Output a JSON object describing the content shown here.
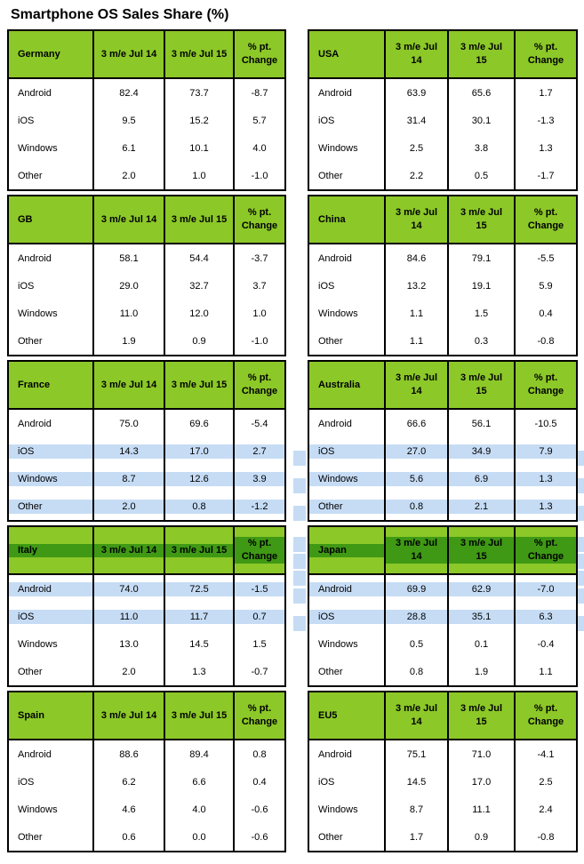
{
  "title": "Smartphone OS Sales Share (%)",
  "colors": {
    "header_green": "#8CC828",
    "selected_header_green": "#3F9914",
    "selection_blue": "#C6DCF5",
    "border": "#000000",
    "text": "#000000"
  },
  "chart_data": [
    {
      "type": "table",
      "side": "left",
      "country": "Germany",
      "columns": [
        "Germany",
        "3 m/e Jul 14",
        "3 m/e Jul 15",
        "% pt.\nChange"
      ],
      "rows": [
        [
          "Android",
          "82.4",
          "73.7",
          "-8.7"
        ],
        [
          "iOS",
          "9.5",
          "15.2",
          "5.7"
        ],
        [
          "Windows",
          "6.1",
          "10.1",
          "4.0"
        ],
        [
          "Other",
          "2.0",
          "1.0",
          "-1.0"
        ]
      ],
      "header_selected": false,
      "selected_rows": []
    },
    {
      "type": "table",
      "side": "left",
      "country": "GB",
      "columns": [
        "GB",
        "3 m/e Jul 14",
        "3 m/e Jul 15",
        "% pt.\nChange"
      ],
      "rows": [
        [
          "Android",
          "58.1",
          "54.4",
          "-3.7"
        ],
        [
          "iOS",
          "29.0",
          "32.7",
          "3.7"
        ],
        [
          "Windows",
          "11.0",
          "12.0",
          "1.0"
        ],
        [
          "Other",
          "1.9",
          "0.9",
          "-1.0"
        ]
      ],
      "header_selected": false,
      "selected_rows": []
    },
    {
      "type": "table",
      "side": "left",
      "country": "France",
      "columns": [
        "France",
        "3 m/e Jul 14",
        "3 m/e Jul 15",
        "% pt.\nChange"
      ],
      "rows": [
        [
          "Android",
          "75.0",
          "69.6",
          "-5.4"
        ],
        [
          "iOS",
          "14.3",
          "17.0",
          "2.7"
        ],
        [
          "Windows",
          "8.7",
          "12.6",
          "3.9"
        ],
        [
          "Other",
          "2.0",
          "0.8",
          "-1.2"
        ]
      ],
      "header_selected": false,
      "selected_rows": [
        1,
        2,
        3
      ]
    },
    {
      "type": "table",
      "side": "left",
      "country": "Italy",
      "columns": [
        "Italy",
        "3 m/e Jul 14",
        "3 m/e Jul 15",
        "% pt.\nChange"
      ],
      "rows": [
        [
          "Android",
          "74.0",
          "72.5",
          "-1.5"
        ],
        [
          "iOS",
          "11.0",
          "11.7",
          "0.7"
        ],
        [
          "Windows",
          "13.0",
          "14.5",
          "1.5"
        ],
        [
          "Other",
          "2.0",
          "1.3",
          "-0.7"
        ]
      ],
      "header_selected": true,
      "selected_rows": [
        0,
        1
      ]
    },
    {
      "type": "table",
      "side": "left",
      "country": "Spain",
      "columns": [
        "Spain",
        "3 m/e Jul 14",
        "3 m/e Jul 15",
        "% pt.\nChange"
      ],
      "rows": [
        [
          "Android",
          "88.6",
          "89.4",
          "0.8"
        ],
        [
          "iOS",
          "6.2",
          "6.6",
          "0.4"
        ],
        [
          "Windows",
          "4.6",
          "4.0",
          "-0.6"
        ],
        [
          "Other",
          "0.6",
          "0.0",
          "-0.6"
        ]
      ],
      "header_selected": false,
      "selected_rows": []
    },
    {
      "type": "table",
      "side": "right",
      "country": "USA",
      "columns": [
        "USA",
        "3 m/e Jul\n14",
        "3 m/e Jul\n15",
        "% pt.\nChange"
      ],
      "rows": [
        [
          "Android",
          "63.9",
          "65.6",
          "1.7"
        ],
        [
          "iOS",
          "31.4",
          "30.1",
          "-1.3"
        ],
        [
          "Windows",
          "2.5",
          "3.8",
          "1.3"
        ],
        [
          "Other",
          "2.2",
          "0.5",
          "-1.7"
        ]
      ],
      "header_selected": false,
      "selected_rows": []
    },
    {
      "type": "table",
      "side": "right",
      "country": "China",
      "columns": [
        "China",
        "3 m/e Jul\n14",
        "3 m/e Jul\n15",
        "% pt.\nChange"
      ],
      "rows": [
        [
          "Android",
          "84.6",
          "79.1",
          "-5.5"
        ],
        [
          "iOS",
          "13.2",
          "19.1",
          "5.9"
        ],
        [
          "Windows",
          "1.1",
          "1.5",
          "0.4"
        ],
        [
          "Other",
          "1.1",
          "0.3",
          "-0.8"
        ]
      ],
      "header_selected": false,
      "selected_rows": []
    },
    {
      "type": "table",
      "side": "right",
      "country": "Australia",
      "columns": [
        "Australia",
        "3 m/e Jul\n14",
        "3 m/e Jul\n15",
        "% pt.\nChange"
      ],
      "rows": [
        [
          "Android",
          "66.6",
          "56.1",
          "-10.5"
        ],
        [
          "iOS",
          "27.0",
          "34.9",
          "7.9"
        ],
        [
          "Windows",
          "5.6",
          "6.9",
          "1.3"
        ],
        [
          "Other",
          "0.8",
          "2.1",
          "1.3"
        ]
      ],
      "header_selected": false,
      "selected_rows": [
        1,
        2,
        3
      ]
    },
    {
      "type": "table",
      "side": "right",
      "country": "Japan",
      "columns": [
        "Japan",
        "3 m/e Jul\n14",
        "3 m/e Jul\n15",
        "% pt.\nChange"
      ],
      "rows": [
        [
          "Android",
          "69.9",
          "62.9",
          "-7.0"
        ],
        [
          "iOS",
          "28.8",
          "35.1",
          "6.3"
        ],
        [
          "Windows",
          "0.5",
          "0.1",
          "-0.4"
        ],
        [
          "Other",
          "0.8",
          "1.9",
          "1.1"
        ]
      ],
      "header_selected": true,
      "selected_rows": [
        0,
        1
      ]
    },
    {
      "type": "table",
      "side": "right",
      "country": "EU5",
      "columns": [
        "EU5",
        "3 m/e Jul\n14",
        "3 m/e Jul\n15",
        "% pt.\nChange"
      ],
      "rows": [
        [
          "Android",
          "75.1",
          "71.0",
          "-4.1"
        ],
        [
          "iOS",
          "14.5",
          "17.0",
          "2.5"
        ],
        [
          "Windows",
          "8.7",
          "11.1",
          "2.4"
        ],
        [
          "Other",
          "1.7",
          "0.9",
          "-0.8"
        ]
      ],
      "header_selected": false,
      "selected_rows": []
    }
  ]
}
